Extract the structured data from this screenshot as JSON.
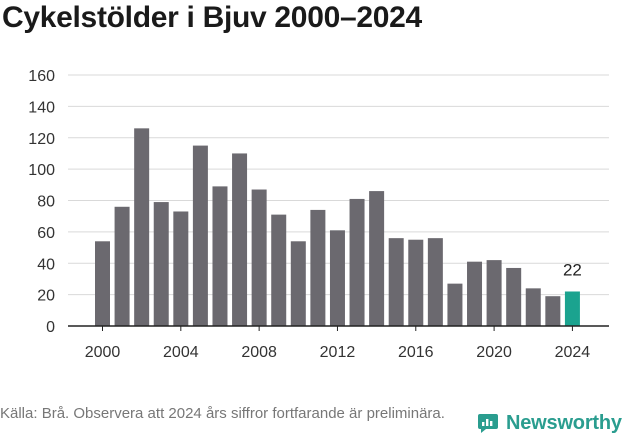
{
  "header": {
    "title": "Cykelstölder i Bjuv 2000–2024"
  },
  "chart_data": {
    "type": "bar",
    "categories": [
      "2000",
      "2001",
      "2002",
      "2003",
      "2004",
      "2005",
      "2006",
      "2007",
      "2008",
      "2009",
      "2010",
      "2011",
      "2012",
      "2013",
      "2014",
      "2015",
      "2016",
      "2017",
      "2018",
      "2019",
      "2020",
      "2021",
      "2022",
      "2023",
      "2024"
    ],
    "values": [
      54,
      76,
      126,
      79,
      73,
      115,
      89,
      110,
      87,
      71,
      54,
      74,
      61,
      81,
      86,
      56,
      55,
      56,
      27,
      41,
      42,
      37,
      24,
      19,
      22
    ],
    "x_tick_labels": [
      "2000",
      "2004",
      "2008",
      "2012",
      "2016",
      "2020",
      "2024"
    ],
    "y_ticks": [
      0,
      20,
      40,
      60,
      80,
      100,
      120,
      140,
      160
    ],
    "ylim": [
      0,
      160
    ],
    "grid": true,
    "highlight": {
      "category": "2024",
      "label": "22"
    },
    "colors": {
      "bar": "#6b696f",
      "highlight": "#1ba38f",
      "grid": "#d9d9d9",
      "axis": "#222222",
      "tick_text": "#333333"
    }
  },
  "footer": {
    "source": "Källa: Brå. Observera att 2024 års siffror fortfarande är preliminära.",
    "brand": "Newsworthy",
    "brand_icon": "newsworthy-logo-icon",
    "brand_color": "#2a9d8f"
  }
}
